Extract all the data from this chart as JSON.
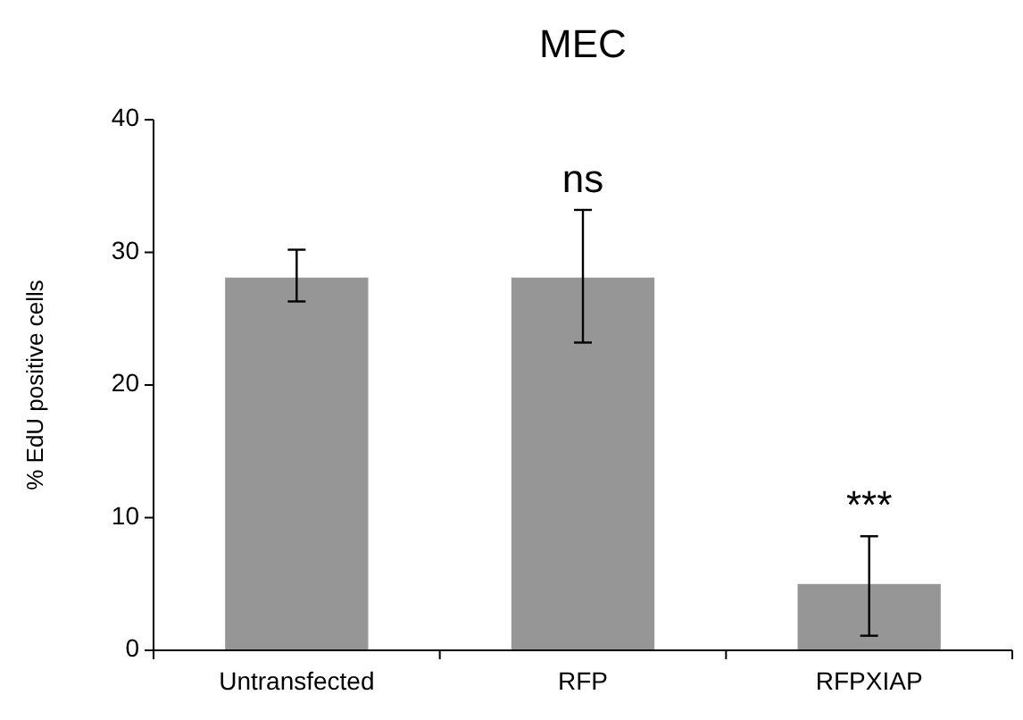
{
  "chart_data": {
    "type": "bar",
    "title": "MEC",
    "ylabel": "% EdU positive cells",
    "categories": [
      "Untransfected",
      "RFP",
      "RFPXIAP"
    ],
    "values": [
      28.1,
      28.1,
      5.0
    ],
    "errors": [
      [
        26.3,
        30.2
      ],
      [
        23.2,
        33.2
      ],
      [
        1.1,
        8.6
      ]
    ],
    "color": "#969696",
    "ylim": [
      0,
      40
    ],
    "yticks": [
      0,
      10,
      20,
      30,
      40
    ],
    "annotations": [
      "ns",
      "***"
    ]
  }
}
